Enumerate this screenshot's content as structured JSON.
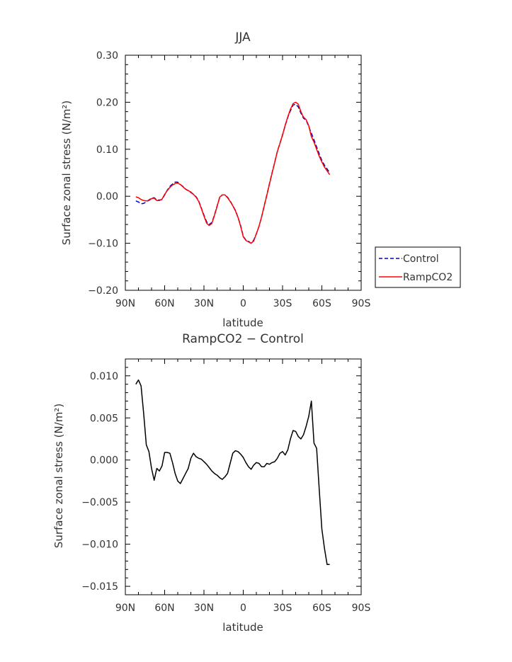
{
  "chart_data": [
    {
      "type": "line",
      "title": "JJA",
      "xlabel": "latitude",
      "ylabel": "Surface zonal stress (N/m²)",
      "xlim": [
        90,
        -90
      ],
      "ylim": [
        -0.2,
        0.3
      ],
      "xticks": [
        90,
        60,
        30,
        0,
        -30,
        -60,
        -90
      ],
      "xtick_labels": [
        "90N",
        "60N",
        "30N",
        "0",
        "30S",
        "60S",
        "90S"
      ],
      "yticks": [
        -0.2,
        -0.1,
        0.0,
        0.1,
        0.2,
        0.3
      ],
      "ytick_labels": [
        "-0.20",
        "-0.10",
        "0.00",
        "0.10",
        "0.20",
        "0.30"
      ],
      "legend": "outside right",
      "series": [
        {
          "name": "Control",
          "color": "#0000cc",
          "dash": "dashed",
          "x": [
            82,
            80,
            78,
            76,
            74,
            72,
            70,
            68,
            66,
            64,
            62,
            60,
            58,
            56,
            54,
            52,
            50,
            48,
            46,
            44,
            42,
            40,
            38,
            36,
            34,
            32,
            30,
            28,
            26,
            24,
            22,
            20,
            18,
            16,
            14,
            12,
            10,
            8,
            6,
            4,
            2,
            0,
            -2,
            -4,
            -6,
            -8,
            -10,
            -12,
            -14,
            -16,
            -18,
            -20,
            -22,
            -24,
            -26,
            -28,
            -30,
            -32,
            -34,
            -36,
            -38,
            -40,
            -42,
            -44,
            -46,
            -48,
            -50,
            -52,
            -54,
            -56,
            -58,
            -60,
            -62,
            -64,
            -66
          ],
          "values": [
            -0.01,
            -0.012,
            -0.016,
            -0.015,
            -0.012,
            -0.008,
            -0.004,
            -0.003,
            -0.008,
            -0.008,
            -0.007,
            0.003,
            0.013,
            0.021,
            0.026,
            0.03,
            0.03,
            0.025,
            0.021,
            0.015,
            0.012,
            0.008,
            0.004,
            -0.001,
            -0.01,
            -0.025,
            -0.04,
            -0.054,
            -0.06,
            -0.056,
            -0.04,
            -0.021,
            -0.003,
            0.003,
            0.003,
            -0.002,
            -0.01,
            -0.02,
            -0.03,
            -0.045,
            -0.062,
            -0.085,
            -0.093,
            -0.096,
            -0.1,
            -0.093,
            -0.08,
            -0.064,
            -0.044,
            -0.02,
            0.003,
            0.027,
            0.05,
            0.072,
            0.095,
            0.113,
            0.13,
            0.15,
            0.168,
            0.182,
            0.194,
            0.196,
            0.19,
            0.177,
            0.166,
            0.162,
            0.148,
            0.134,
            0.12,
            0.105,
            0.09,
            0.076,
            0.066,
            0.058,
            0.05
          ]
        },
        {
          "name": "RampCO2",
          "color": "#ff0000",
          "dash": "solid",
          "x": [
            82,
            80,
            78,
            76,
            74,
            72,
            70,
            68,
            66,
            64,
            62,
            60,
            58,
            56,
            54,
            52,
            50,
            48,
            46,
            44,
            42,
            40,
            38,
            36,
            34,
            32,
            30,
            28,
            26,
            24,
            22,
            20,
            18,
            16,
            14,
            12,
            10,
            8,
            6,
            4,
            2,
            0,
            -2,
            -4,
            -6,
            -8,
            -10,
            -12,
            -14,
            -16,
            -18,
            -20,
            -22,
            -24,
            -26,
            -28,
            -30,
            -32,
            -34,
            -36,
            -38,
            -40,
            -42,
            -44,
            -46,
            -48,
            -50,
            -52,
            -54,
            -56,
            -58,
            -60,
            -62,
            -64,
            -66
          ],
          "values": [
            -0.001,
            -0.003,
            -0.007,
            -0.009,
            -0.01,
            -0.009,
            -0.005,
            -0.004,
            -0.009,
            -0.009,
            -0.006,
            0.004,
            0.012,
            0.019,
            0.024,
            0.027,
            0.028,
            0.025,
            0.02,
            0.015,
            0.012,
            0.009,
            0.004,
            -0.002,
            -0.011,
            -0.026,
            -0.042,
            -0.057,
            -0.062,
            -0.058,
            -0.041,
            -0.022,
            -0.002,
            0.003,
            0.003,
            -0.003,
            -0.011,
            -0.02,
            -0.031,
            -0.045,
            -0.064,
            -0.086,
            -0.094,
            -0.097,
            -0.1,
            -0.095,
            -0.08,
            -0.064,
            -0.044,
            -0.021,
            0.002,
            0.026,
            0.049,
            0.072,
            0.095,
            0.112,
            0.131,
            0.151,
            0.169,
            0.185,
            0.197,
            0.2,
            0.196,
            0.18,
            0.168,
            0.163,
            0.15,
            0.127,
            0.115,
            0.1,
            0.085,
            0.073,
            0.062,
            0.054,
            0.046
          ]
        }
      ]
    },
    {
      "type": "line",
      "title": "RampCO2 − Control",
      "xlabel": "latitude",
      "ylabel": "Surface zonal stress (N/m²)",
      "xlim": [
        90,
        -90
      ],
      "ylim": [
        -0.016,
        0.012
      ],
      "xticks": [
        90,
        60,
        30,
        0,
        -30,
        -60,
        -90
      ],
      "xtick_labels": [
        "90N",
        "60N",
        "30N",
        "0",
        "30S",
        "60S",
        "90S"
      ],
      "yticks": [
        -0.015,
        -0.01,
        -0.005,
        0.0,
        0.005,
        0.01
      ],
      "ytick_labels": [
        "-0.015",
        "-0.010",
        "-0.005",
        "0.000",
        "0.005",
        "0.010"
      ],
      "series": [
        {
          "color": "#000000",
          "x": [
            82,
            80,
            78,
            76,
            74,
            72,
            70,
            68,
            66,
            64,
            62,
            60,
            58,
            56,
            54,
            52,
            50,
            48,
            46,
            44,
            42,
            40,
            38,
            36,
            34,
            32,
            30,
            28,
            26,
            24,
            22,
            20,
            18,
            16,
            14,
            12,
            10,
            8,
            6,
            4,
            2,
            0,
            -2,
            -4,
            -6,
            -8,
            -10,
            -12,
            -14,
            -16,
            -18,
            -20,
            -22,
            -24,
            -26,
            -28,
            -30,
            -32,
            -34,
            -36,
            -38,
            -40,
            -42,
            -44,
            -46,
            -48,
            -50,
            -52,
            -54,
            -56,
            -58,
            -60,
            -62,
            -64,
            -66
          ],
          "values": [
            0.009,
            0.0095,
            0.0088,
            0.0055,
            0.0018,
            0.001,
            -0.001,
            -0.0024,
            -0.001,
            -0.0013,
            -0.0007,
            0.0009,
            0.0009,
            0.0008,
            -0.0003,
            -0.0016,
            -0.0025,
            -0.0028,
            -0.0022,
            -0.0016,
            -0.001,
            0.0002,
            0.0008,
            0.0004,
            0.0002,
            0.0001,
            -0.0002,
            -0.0005,
            -0.0009,
            -0.0013,
            -0.0016,
            -0.0018,
            -0.0021,
            -0.0023,
            -0.002,
            -0.0016,
            -0.0004,
            0.0008,
            0.0011,
            0.001,
            0.0007,
            0.0003,
            -0.0003,
            -0.0008,
            -0.0011,
            -0.0006,
            -0.0003,
            -0.0004,
            -0.0008,
            -0.0008,
            -0.0004,
            -0.0005,
            -0.0003,
            -0.0002,
            0.0002,
            0.0008,
            0.001,
            0.0006,
            0.0012,
            0.0025,
            0.0035,
            0.0034,
            0.0028,
            0.0025,
            0.003,
            0.004,
            0.0052,
            0.007,
            0.002,
            0.0014,
            -0.0035,
            -0.0082,
            -0.0105,
            -0.0124,
            -0.0124
          ]
        }
      ]
    }
  ]
}
